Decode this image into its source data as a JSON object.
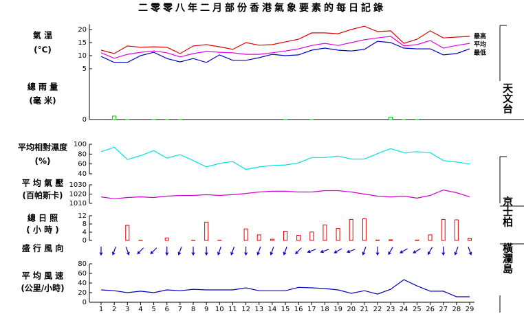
{
  "title": "二零零八年二月部份香港氣象要素的每日記錄",
  "stations": [
    "天文台",
    "京士柏",
    "橫瀾島"
  ],
  "chart_data": [
    {
      "type": "line",
      "label": "氣 溫",
      "unit": "(°C)",
      "ylim": [
        5,
        22
      ],
      "yticks": [
        5,
        10,
        15,
        20
      ],
      "series": [
        {
          "name": "最高",
          "color": "#e00000",
          "values": [
            12.1,
            10.8,
            13.7,
            13.2,
            13.4,
            13.2,
            10.8,
            13.7,
            14.2,
            13.4,
            12.4,
            15,
            14,
            14.2,
            15.3,
            16.3,
            18.7,
            18.7,
            18.4,
            20,
            21.3,
            19.2,
            19.5,
            14.7,
            16.3,
            19.5,
            16.8,
            17.1,
            17.4
          ]
        },
        {
          "name": "平均",
          "color": "#e000e0",
          "values": [
            11.1,
            9,
            10.5,
            11.3,
            11.8,
            11.1,
            9.5,
            10.8,
            11.6,
            11.3,
            11.1,
            10.5,
            10.5,
            11.1,
            11.8,
            12.6,
            13.9,
            14.7,
            13.9,
            15,
            16.1,
            16.8,
            17.4,
            13.7,
            14.2,
            15.8,
            12.9,
            13.9,
            14.7
          ]
        },
        {
          "name": "最低",
          "color": "#0000c0",
          "values": [
            9.7,
            7.4,
            7.4,
            10,
            11.3,
            8.9,
            7.6,
            8.9,
            7.4,
            10.3,
            8.2,
            8.2,
            9.2,
            10.5,
            10,
            10.3,
            12.1,
            12.9,
            12.1,
            11.8,
            12.4,
            15.5,
            15,
            12.9,
            12.6,
            12.6,
            10.3,
            10.8,
            12.6
          ]
        }
      ]
    },
    {
      "type": "bar",
      "label": "總 雨 量",
      "unit": "(毫 米)",
      "ylim": [
        0,
        50
      ],
      "yticks": [
        0
      ],
      "color": "#00c000",
      "values": [
        0,
        3.4,
        0.1,
        0,
        0.1,
        0.1,
        0.1,
        0,
        0,
        0,
        0,
        0,
        0,
        0,
        0.1,
        0,
        0.1,
        0,
        0,
        0,
        0,
        0,
        2.4,
        0.1,
        0.1,
        0,
        0,
        0,
        0
      ]
    },
    {
      "type": "line",
      "label": "平均相對濕度",
      "unit": "(%)",
      "ylim": [
        40,
        100
      ],
      "yticks": [
        40,
        60,
        80,
        100
      ],
      "series": [
        {
          "color": "#00e0e0",
          "values": [
            85,
            94,
            69,
            77,
            87,
            72,
            79,
            67,
            54,
            61,
            65,
            49,
            54,
            57,
            58,
            62,
            73,
            73,
            76,
            70,
            70,
            81,
            91,
            83,
            85,
            83,
            67,
            64,
            60
          ]
        }
      ]
    },
    {
      "type": "line",
      "label": "平 均 氣 壓",
      "unit": "(百帕斯卡)",
      "ylim": [
        1010,
        1030
      ],
      "yticks": [
        1010,
        1020,
        1030
      ],
      "series": [
        {
          "color": "#d000d0",
          "values": [
            1017,
            1015,
            1016.3,
            1017,
            1016.3,
            1017.8,
            1018.5,
            1018.5,
            1019.3,
            1018.5,
            1019.3,
            1020.7,
            1022.2,
            1023,
            1023,
            1022.2,
            1022.2,
            1023.7,
            1023.7,
            1022.2,
            1020,
            1017.8,
            1017,
            1017.8,
            1015.6,
            1018.5,
            1024.4,
            1021.5,
            1017
          ]
        }
      ]
    },
    {
      "type": "bar",
      "label": "總 日 照",
      "unit": "( 小 時 )",
      "ylim": [
        0,
        12
      ],
      "yticks": [
        0,
        4,
        8,
        12
      ],
      "color": "#e00000",
      "values": [
        0,
        0,
        7.3,
        0.1,
        0,
        1.2,
        0,
        0.1,
        8.9,
        0.1,
        0,
        5.6,
        2.7,
        0.6,
        4.5,
        2.5,
        4.1,
        7.5,
        5.8,
        10.2,
        10.5,
        0.2,
        0.3,
        0,
        0.2,
        2.7,
        10.2,
        10,
        0.9
      ]
    },
    {
      "type": "arrow",
      "label": "盛 行 風 向",
      "color": "#0000c0",
      "values": [
        360,
        20,
        340,
        45,
        45,
        360,
        20,
        360,
        360,
        20,
        20,
        360,
        20,
        20,
        20,
        45,
        70,
        70,
        60,
        70,
        20,
        360,
        30,
        60,
        60,
        30,
        360,
        20,
        340
      ]
    },
    {
      "type": "line",
      "label": "平 均 風 速",
      "unit": "(公里/小時)",
      "ylim": [
        0,
        80
      ],
      "yticks": [
        0,
        20,
        40,
        60,
        80
      ],
      "categories": [
        "1",
        "2",
        "3",
        "4",
        "5",
        "6",
        "7",
        "8",
        "9",
        "10",
        "11",
        "12",
        "13",
        "14",
        "15",
        "16",
        "17",
        "18",
        "19",
        "20",
        "21",
        "22",
        "23",
        "24",
        "25",
        "26",
        "27",
        "28",
        "29"
      ],
      "series": [
        {
          "color": "#0000c0",
          "values": [
            25.7,
            24,
            20,
            23,
            20,
            25.7,
            24,
            27,
            25.7,
            25.7,
            25.7,
            30,
            24,
            24,
            24,
            31,
            30,
            28.6,
            25.7,
            18.6,
            24,
            17,
            27,
            47,
            34,
            23,
            23,
            11.4,
            11.4
          ]
        }
      ]
    }
  ]
}
